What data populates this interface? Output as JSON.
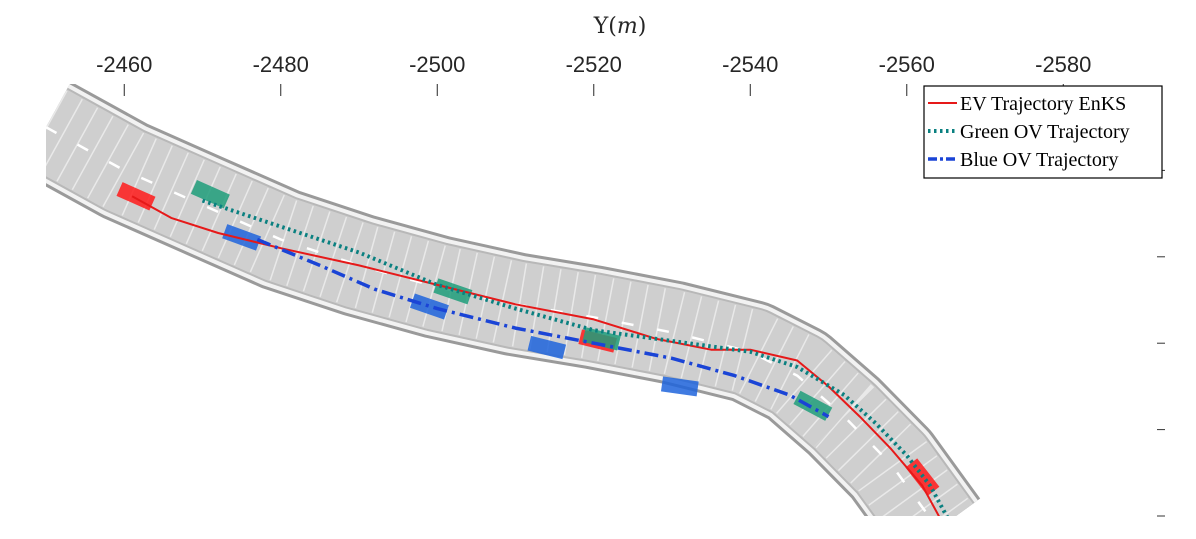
{
  "chart_data": {
    "type": "line",
    "title": "",
    "xlabel": "Y(m)",
    "ylabel": "",
    "x_axis_position": "top",
    "x_reversed": true,
    "xlim": [
      -2450,
      -2593
    ],
    "x_ticks": [
      -2460,
      -2480,
      -2500,
      -2520,
      -2540,
      -2560,
      -2580
    ],
    "x_tick_labels": [
      "-2460",
      "-2480",
      "-2500",
      "-2520",
      "-2540",
      "-2560",
      "-2580"
    ],
    "ylim": [
      0,
      10
    ],
    "y_reversed": true,
    "y_ticks_unlabeled": [
      2,
      4,
      6,
      8,
      10
    ],
    "grid": false,
    "legend_position": "top-right",
    "road": {
      "centerline": [
        [
          -2450,
          1.0
        ],
        [
          -2460,
          2.0
        ],
        [
          -2470,
          2.8
        ],
        [
          -2480,
          3.6
        ],
        [
          -2490,
          4.2
        ],
        [
          -2500,
          4.7
        ],
        [
          -2510,
          5.1
        ],
        [
          -2520,
          5.4
        ],
        [
          -2530,
          5.75
        ],
        [
          -2540,
          6.2
        ],
        [
          -2546,
          6.75
        ],
        [
          -2552,
          7.7
        ],
        [
          -2558,
          8.8
        ],
        [
          -2564,
          10.3
        ]
      ],
      "color": "#cfcfcf"
    },
    "series": [
      {
        "name": "EV Trajectory EnKS",
        "color": "#e61919",
        "style": "solid",
        "points": [
          [
            -2461,
            2.6
          ],
          [
            -2466,
            3.1
          ],
          [
            -2472,
            3.45
          ],
          [
            -2480,
            3.8
          ],
          [
            -2490,
            4.2
          ],
          [
            -2500,
            4.65
          ],
          [
            -2510,
            5.1
          ],
          [
            -2520,
            5.45
          ],
          [
            -2528,
            5.9
          ],
          [
            -2535,
            6.15
          ],
          [
            -2540,
            6.15
          ],
          [
            -2546,
            6.4
          ],
          [
            -2550,
            7.0
          ],
          [
            -2554,
            7.7
          ],
          [
            -2558,
            8.45
          ],
          [
            -2562,
            9.3
          ],
          [
            -2565,
            10.3
          ]
        ]
      },
      {
        "name": "Green OV Trajectory",
        "color": "#0a8080",
        "style": "dotted",
        "points": [
          [
            -2470,
            2.7
          ],
          [
            -2480,
            3.3
          ],
          [
            -2490,
            3.9
          ],
          [
            -2500,
            4.65
          ],
          [
            -2510,
            5.2
          ],
          [
            -2520,
            5.7
          ],
          [
            -2530,
            5.95
          ],
          [
            -2540,
            6.2
          ],
          [
            -2546,
            6.55
          ],
          [
            -2552,
            7.2
          ],
          [
            -2556,
            7.85
          ],
          [
            -2560,
            8.6
          ],
          [
            -2563,
            9.3
          ],
          [
            -2566,
            10.3
          ]
        ]
      },
      {
        "name": "Blue OV Trajectory",
        "color": "#1a44d6",
        "style": "dashdot",
        "points": [
          [
            -2477,
            3.6
          ],
          [
            -2485,
            4.2
          ],
          [
            -2492,
            4.75
          ],
          [
            -2500,
            5.2
          ],
          [
            -2510,
            5.65
          ],
          [
            -2520,
            6.0
          ],
          [
            -2530,
            6.35
          ],
          [
            -2538,
            6.75
          ],
          [
            -2545,
            7.2
          ],
          [
            -2550,
            7.7
          ]
        ]
      }
    ],
    "vehicles": [
      {
        "group": "EV",
        "color": "#ff1a1a",
        "x": -2461.5,
        "y": 2.6,
        "angle": 24
      },
      {
        "group": "EV",
        "color": "#ff1a1a",
        "x": -2520.5,
        "y": 5.95,
        "angle": 14
      },
      {
        "group": "EV",
        "color": "#ff1a1a",
        "x": -2562,
        "y": 9.1,
        "angle": 52
      },
      {
        "group": "Green OV",
        "color": "#1f9e7a",
        "x": -2471,
        "y": 2.55,
        "angle": 24
      },
      {
        "group": "Green OV",
        "color": "#1f9e7a",
        "x": -2502,
        "y": 4.8,
        "angle": 19
      },
      {
        "group": "Green OV",
        "color": "#1f9e7a",
        "x": -2521,
        "y": 5.9,
        "angle": 14
      },
      {
        "group": "Green OV",
        "color": "#1f9e7a",
        "x": -2548,
        "y": 7.45,
        "angle": 28
      },
      {
        "group": "Blue OV",
        "color": "#1e64dc",
        "x": -2475,
        "y": 3.55,
        "angle": 20
      },
      {
        "group": "Blue OV",
        "color": "#1e64dc",
        "x": -2499,
        "y": 5.15,
        "angle": 19
      },
      {
        "group": "Blue OV",
        "color": "#1e64dc",
        "x": -2514,
        "y": 6.1,
        "angle": 14
      },
      {
        "group": "Blue OV",
        "color": "#1e64dc",
        "x": -2531,
        "y": 7.0,
        "angle": 8
      }
    ]
  }
}
